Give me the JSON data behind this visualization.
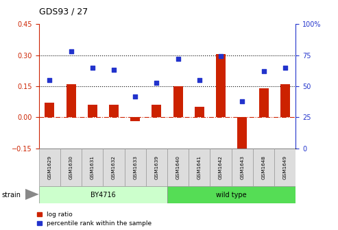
{
  "title": "GDS93 / 27",
  "samples": [
    "GSM1629",
    "GSM1630",
    "GSM1631",
    "GSM1632",
    "GSM1633",
    "GSM1639",
    "GSM1640",
    "GSM1641",
    "GSM1642",
    "GSM1643",
    "GSM1648",
    "GSM1649"
  ],
  "log_ratio": [
    0.07,
    0.16,
    0.06,
    0.06,
    -0.02,
    0.06,
    0.15,
    0.05,
    0.305,
    -0.175,
    0.14,
    0.16
  ],
  "percentile_rank": [
    55,
    78,
    65,
    63,
    42,
    53,
    72,
    55,
    74,
    38,
    62,
    65
  ],
  "group1_label": "BY4716",
  "group1_count": 6,
  "group2_label": "wild type",
  "group2_count": 6,
  "strain_label": "strain",
  "bar_color": "#cc2200",
  "dot_color": "#2233cc",
  "ylim_left": [
    -0.15,
    0.45
  ],
  "ylim_right": [
    0,
    100
  ],
  "yticks_left": [
    -0.15,
    0.0,
    0.15,
    0.3,
    0.45
  ],
  "yticks_right": [
    0,
    25,
    50,
    75,
    100
  ],
  "ytick_labels_right": [
    "0",
    "25",
    "50",
    "75",
    "100%"
  ],
  "hline1": 0.15,
  "hline2": 0.3,
  "group1_color": "#ccffcc",
  "group2_color": "#55dd55",
  "legend_log_ratio": "log ratio",
  "legend_percentile": "percentile rank within the sample",
  "bar_width": 0.45
}
